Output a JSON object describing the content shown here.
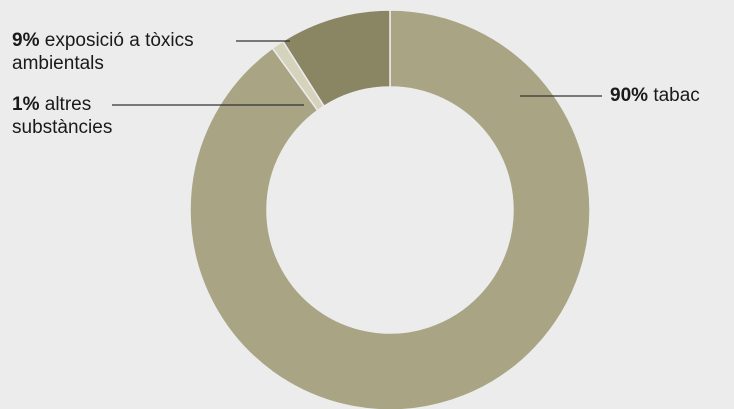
{
  "chart_data": {
    "type": "pie",
    "variant": "donut",
    "slices": [
      {
        "value": 90,
        "percent_label": "90%",
        "name": "tabac",
        "name_lines": [
          "tabac"
        ],
        "color": "#a9a584"
      },
      {
        "value": 1,
        "percent_label": "1%",
        "name": "altres substàncies",
        "name_lines": [
          "altres",
          "substàncies"
        ],
        "color": "#d6d3bd"
      },
      {
        "value": 9,
        "percent_label": "9%",
        "name": "exposició a tòxics ambientals",
        "name_lines": [
          "exposició a tòxics",
          "ambientals"
        ],
        "color": "#8a8563"
      }
    ],
    "legend": "none"
  },
  "colors": {
    "background": "#ececec",
    "text": "#1a1a1a"
  }
}
